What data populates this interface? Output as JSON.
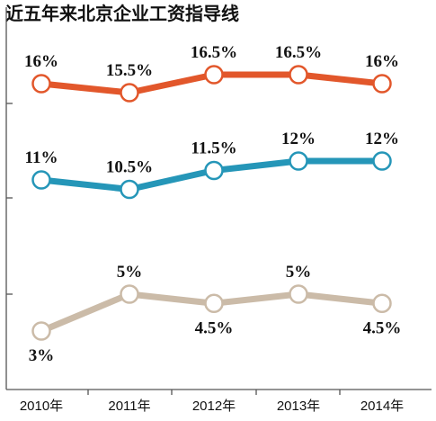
{
  "chart_data": {
    "type": "line",
    "title": "近五年来北京企业工资指导线",
    "categories": [
      "2010年",
      "2011年",
      "2012年",
      "2013年",
      "2014年"
    ],
    "series": [
      {
        "color": "#e2572b",
        "values": [
          16,
          15.5,
          16.5,
          16.5,
          16
        ],
        "labels": [
          "16%",
          "15.5%",
          "16.5%",
          "16.5%",
          "16%"
        ]
      },
      {
        "color": "#2596b8",
        "values": [
          11,
          10.5,
          11.5,
          12,
          12
        ],
        "labels": [
          "11%",
          "10.5%",
          "11.5%",
          "12%",
          "12%"
        ]
      },
      {
        "color": "#cbbba8",
        "values": [
          3,
          5,
          4.5,
          5,
          4.5
        ],
        "labels": [
          "3%",
          "5%",
          "4.5%",
          "5%",
          "4.5%"
        ]
      }
    ],
    "axis_color": "#555555",
    "grid": false,
    "legend": "none"
  }
}
